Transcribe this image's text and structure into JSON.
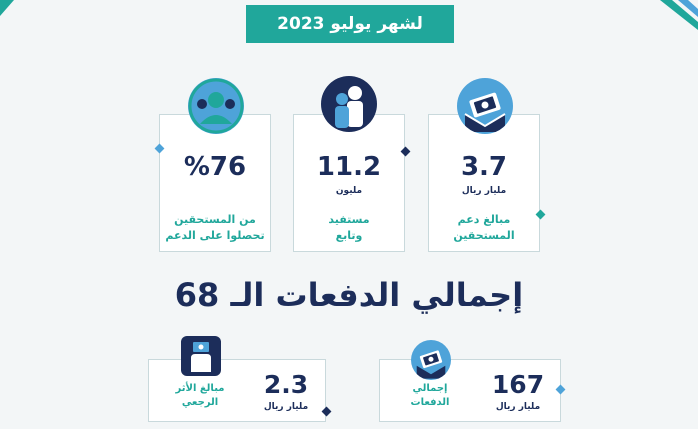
{
  "banner": {
    "title": "لشهر يوليو 2023"
  },
  "stats": [
    {
      "value": "3.7",
      "unit": "مليار ريال",
      "desc_line1": "مبالغ دعم",
      "desc_line2": "المستحقين",
      "icon": "money-envelope-icon"
    },
    {
      "value": "11.2",
      "unit": "مليون",
      "desc_line1": "مستفيد",
      "desc_line2": "وتابع",
      "icon": "people-icon"
    },
    {
      "value": "%76",
      "unit": "",
      "desc_line1": "من المستحقين",
      "desc_line2": "تحصلوا على الدعم",
      "icon": "group-icon"
    }
  ],
  "headline": "إجمالي الدفعات الـ 68",
  "totals": [
    {
      "value": "167",
      "unit": "مليار ريال",
      "desc_line1": "إجمالي",
      "desc_line2": "الدفعات",
      "icon": "money-envelope-icon"
    },
    {
      "value": "2.3",
      "unit": "مليار ريال",
      "desc_line1": "مبالغ الأثر",
      "desc_line2": "الرجعي",
      "icon": "hand-money-icon"
    }
  ],
  "colors": {
    "teal": "#20a79b",
    "navy": "#1c2d5a",
    "light_blue": "#4ea3d9"
  }
}
